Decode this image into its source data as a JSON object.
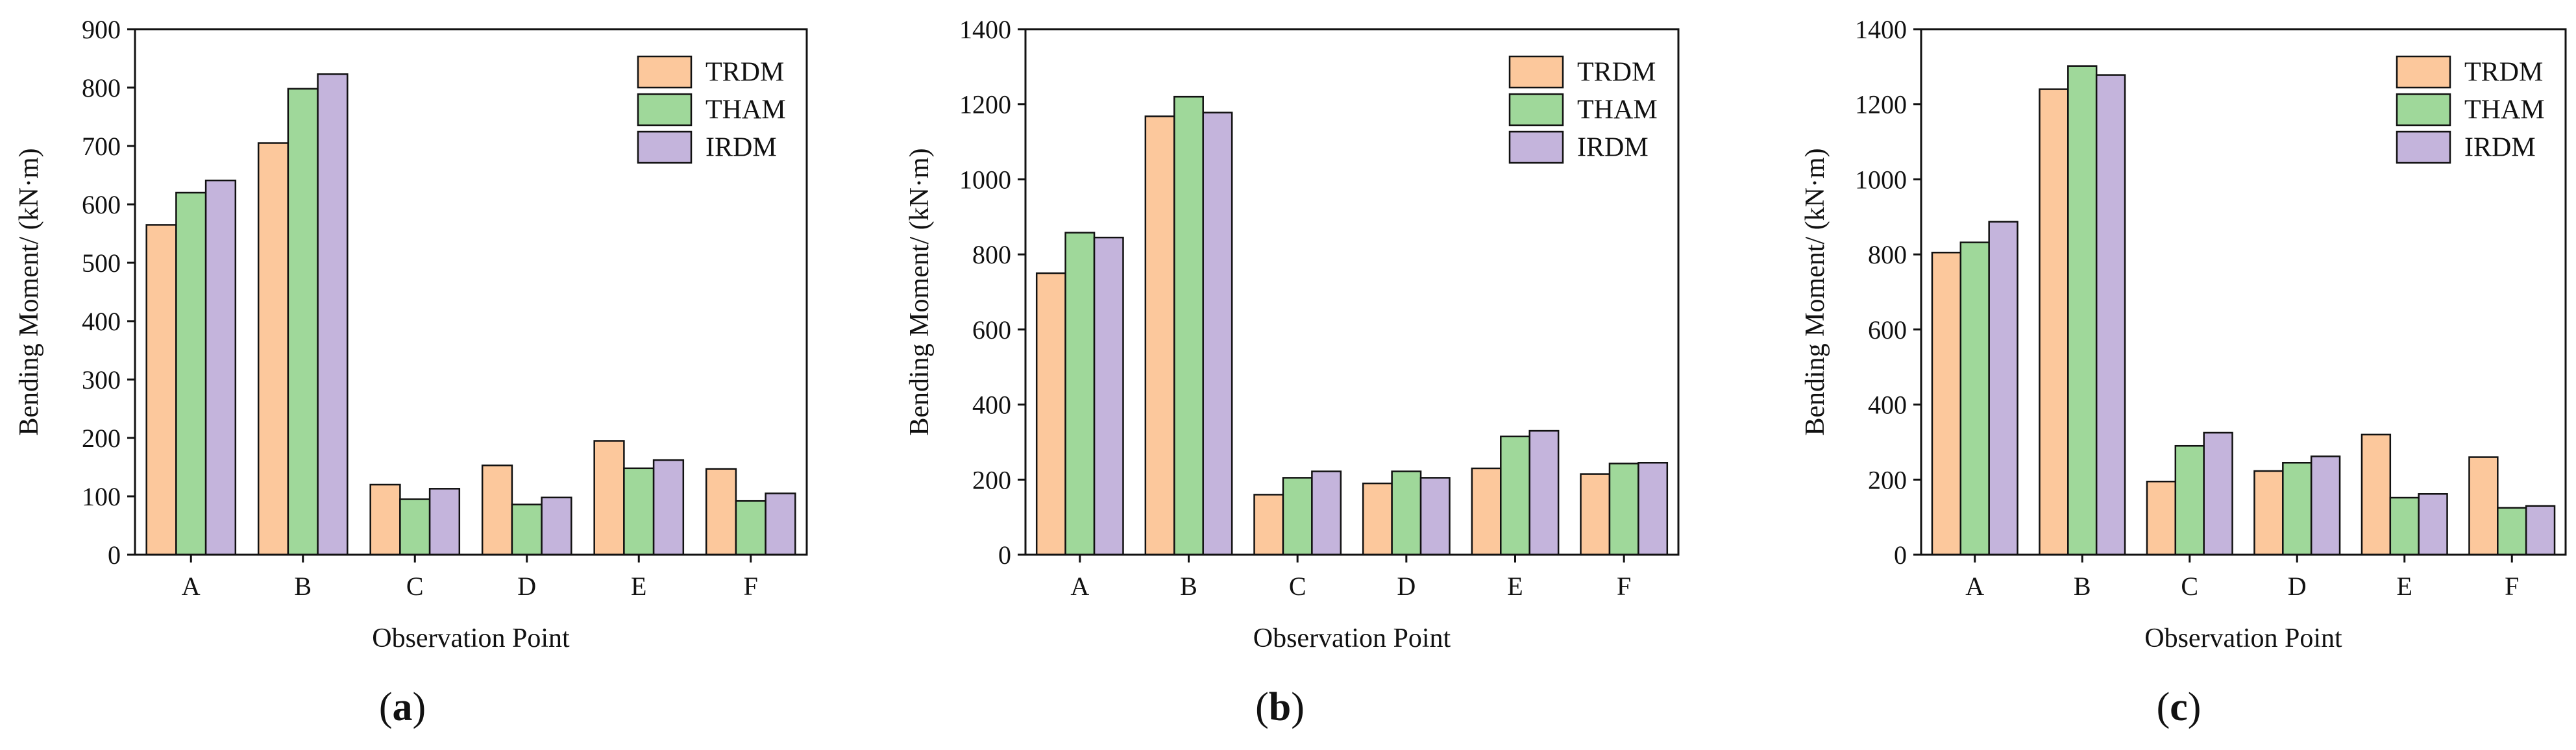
{
  "charts": [
    {
      "panel_label": "(a)",
      "panel_letter": "a",
      "chart_data": {
        "type": "bar",
        "categories": [
          "A",
          "B",
          "C",
          "D",
          "E",
          "F"
        ],
        "series": [
          {
            "name": "TRDM",
            "values": [
              565,
              705,
              120,
              153,
              195,
              147
            ]
          },
          {
            "name": "THAM",
            "values": [
              620,
              798,
              95,
              86,
              148,
              92
            ]
          },
          {
            "name": "IRDM",
            "values": [
              641,
              823,
              113,
              98,
              162,
              105
            ]
          }
        ],
        "xlabel": "Observation Point",
        "ylabel": "Bending Moment/ (kN·m)",
        "ylim": [
          0,
          900
        ],
        "yticks": [
          0,
          100,
          200,
          300,
          400,
          500,
          600,
          700,
          800,
          900
        ],
        "legend": "top-right",
        "grid": false
      }
    },
    {
      "panel_label": "(b)",
      "panel_letter": "b",
      "chart_data": {
        "type": "bar",
        "categories": [
          "A",
          "B",
          "C",
          "D",
          "E",
          "F"
        ],
        "series": [
          {
            "name": "TRDM",
            "values": [
              750,
              1168,
              160,
              190,
              230,
              215
            ]
          },
          {
            "name": "THAM",
            "values": [
              858,
              1220,
              205,
              222,
              315,
              243
            ]
          },
          {
            "name": "IRDM",
            "values": [
              845,
              1178,
              222,
              205,
              330,
              245
            ]
          }
        ],
        "xlabel": "Observation Point",
        "ylabel": "Bending Moment/ (kN·m)",
        "ylim": [
          0,
          1400
        ],
        "yticks": [
          0,
          200,
          400,
          600,
          800,
          1000,
          1200,
          1400
        ],
        "legend": "top-right",
        "grid": false
      }
    },
    {
      "panel_label": "(c)",
      "panel_letter": "c",
      "chart_data": {
        "type": "bar",
        "categories": [
          "A",
          "B",
          "C",
          "D",
          "E",
          "F"
        ],
        "series": [
          {
            "name": "TRDM",
            "values": [
              805,
              1240,
              195,
              223,
              320,
              260
            ]
          },
          {
            "name": "THAM",
            "values": [
              832,
              1302,
              290,
              245,
              152,
              125
            ]
          },
          {
            "name": "IRDM",
            "values": [
              887,
              1278,
              325,
              262,
              162,
              130
            ]
          }
        ],
        "xlabel": "Observation Point",
        "ylabel": "Bending Moment/ (kN·m)",
        "ylim": [
          0,
          1400
        ],
        "yticks": [
          0,
          200,
          400,
          600,
          800,
          1000,
          1200,
          1400
        ],
        "legend": "top-right",
        "grid": false
      }
    }
  ],
  "colors": {
    "TRDM": "#fcc89c",
    "THAM": "#9fd89a",
    "IRDM": "#c4b4dc",
    "axis": "#111111",
    "bar_stroke": "#111111"
  }
}
